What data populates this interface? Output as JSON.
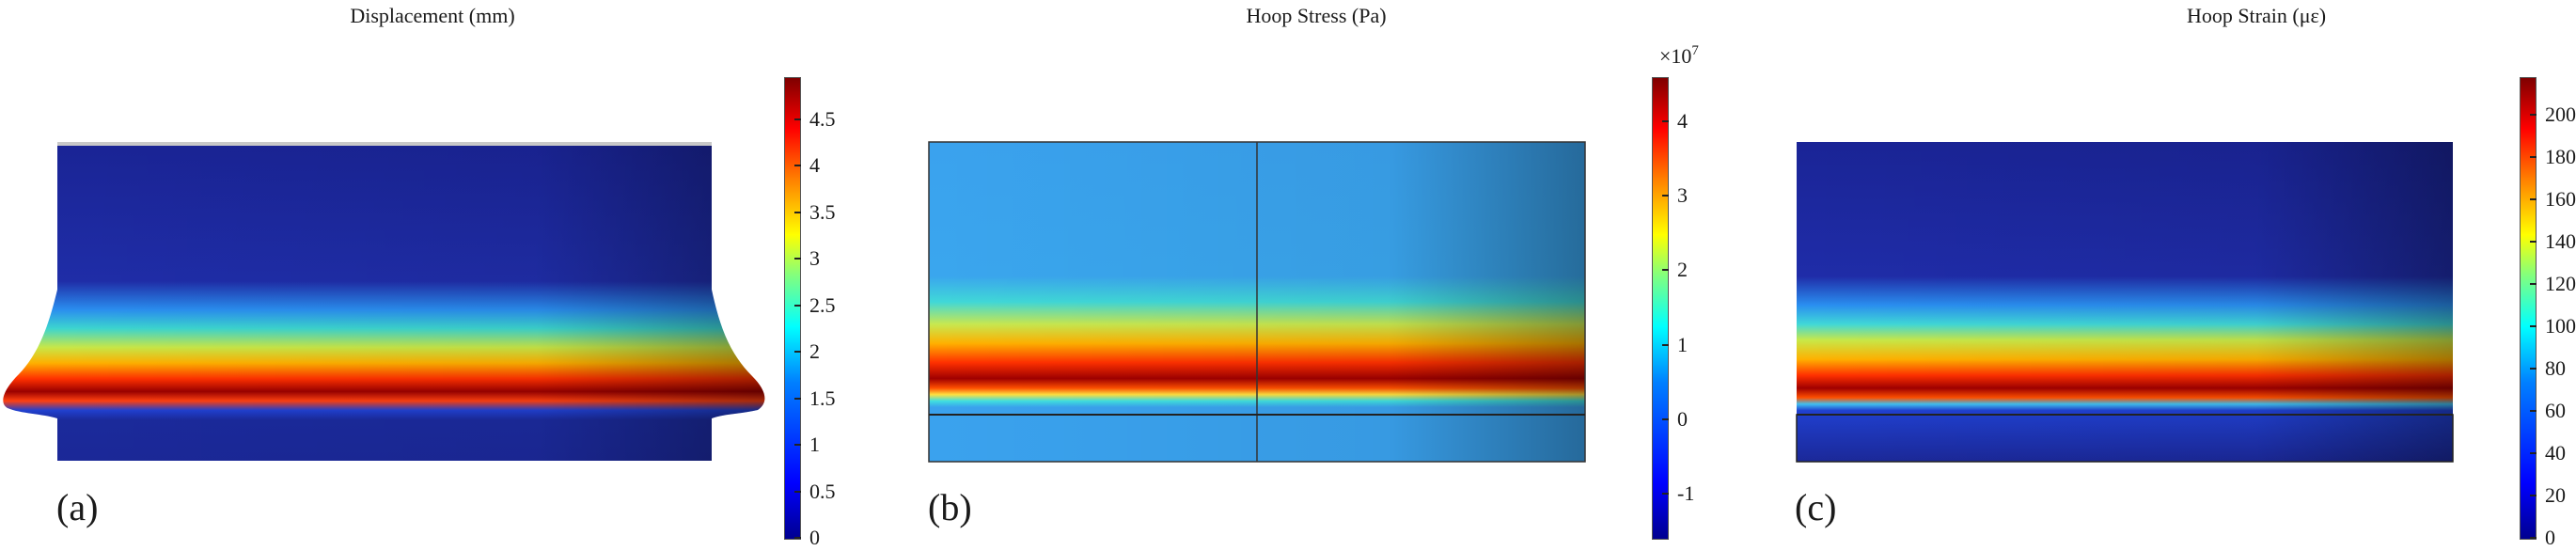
{
  "panels": [
    {
      "title": "Displacement (mm)",
      "letter": "(a)",
      "colorbar": {
        "exponent": "",
        "ticks": [
          "0",
          "0.5",
          "1",
          "1.5",
          "2",
          "2.5",
          "3",
          "3.5",
          "4",
          "4.5"
        ],
        "values": [
          0,
          0.5,
          1,
          1.5,
          2,
          2.5,
          3,
          3.5,
          4,
          4.5
        ],
        "range": [
          0,
          4.95
        ]
      }
    },
    {
      "title": "Hoop Stress (Pa)",
      "letter": "(b)",
      "colorbar": {
        "exponent_base": "×10",
        "exponent_power": "7",
        "ticks": [
          "-1",
          "0",
          "1",
          "2",
          "3",
          "4"
        ],
        "values": [
          -1,
          0,
          1,
          2,
          3,
          4
        ],
        "range": [
          -1.6,
          4.6
        ]
      }
    },
    {
      "title": "Hoop Strain (με)",
      "letter": "(c)",
      "colorbar": {
        "exponent": "",
        "ticks": [
          "0",
          "20",
          "40",
          "60",
          "80",
          "100",
          "120",
          "140",
          "160",
          "180",
          "200"
        ],
        "values": [
          0,
          20,
          40,
          60,
          80,
          100,
          120,
          140,
          160,
          180,
          200
        ],
        "range": [
          0,
          218
        ]
      }
    }
  ],
  "colors": {
    "colormap": [
      "#00008f",
      "#0000ff",
      "#0080ff",
      "#00ffff",
      "#80ff80",
      "#ffff00",
      "#ff8000",
      "#ff0000",
      "#7f0000"
    ],
    "background_low": "#1c2a96",
    "stress_background": "#3aa2ee"
  }
}
